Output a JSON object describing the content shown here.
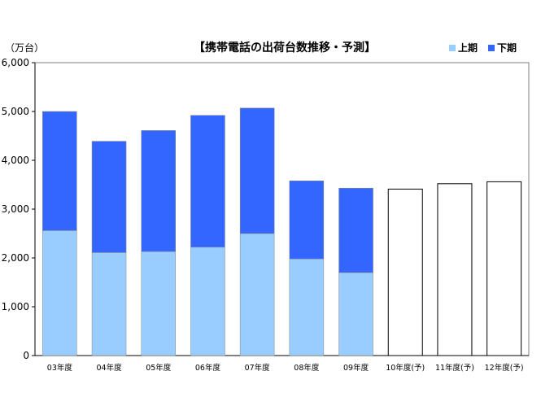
{
  "chart_data": {
    "type": "bar",
    "stacked": true,
    "title": "【携帯電話の出荷台数推移・予測】",
    "ylabel": "（万台）",
    "xlabel": "",
    "ylim": [
      0,
      6000
    ],
    "yticks": [
      "0",
      "1,000",
      "2,000",
      "3,000",
      "4,000",
      "5,000",
      "6,000"
    ],
    "grid": false,
    "legend_position": "top-right",
    "categories": [
      "03年度",
      "04年度",
      "05年度",
      "06年度",
      "07年度",
      "08年度",
      "09年度",
      "10年度(予)",
      "11年度(予)",
      "12年度(予)"
    ],
    "series": [
      {
        "name": "上期",
        "color": "#99ccff",
        "values": [
          2560,
          2110,
          2130,
          2220,
          2500,
          1980,
          1700,
          null,
          null,
          null
        ]
      },
      {
        "name": "下期",
        "color": "#3366ff",
        "values": [
          2440,
          2280,
          2480,
          2700,
          2570,
          1600,
          1730,
          null,
          null,
          null
        ]
      }
    ],
    "forecast_totals": [
      null,
      null,
      null,
      null,
      null,
      null,
      null,
      3410,
      3520,
      3560
    ],
    "forecast_color": "#ffffff"
  }
}
